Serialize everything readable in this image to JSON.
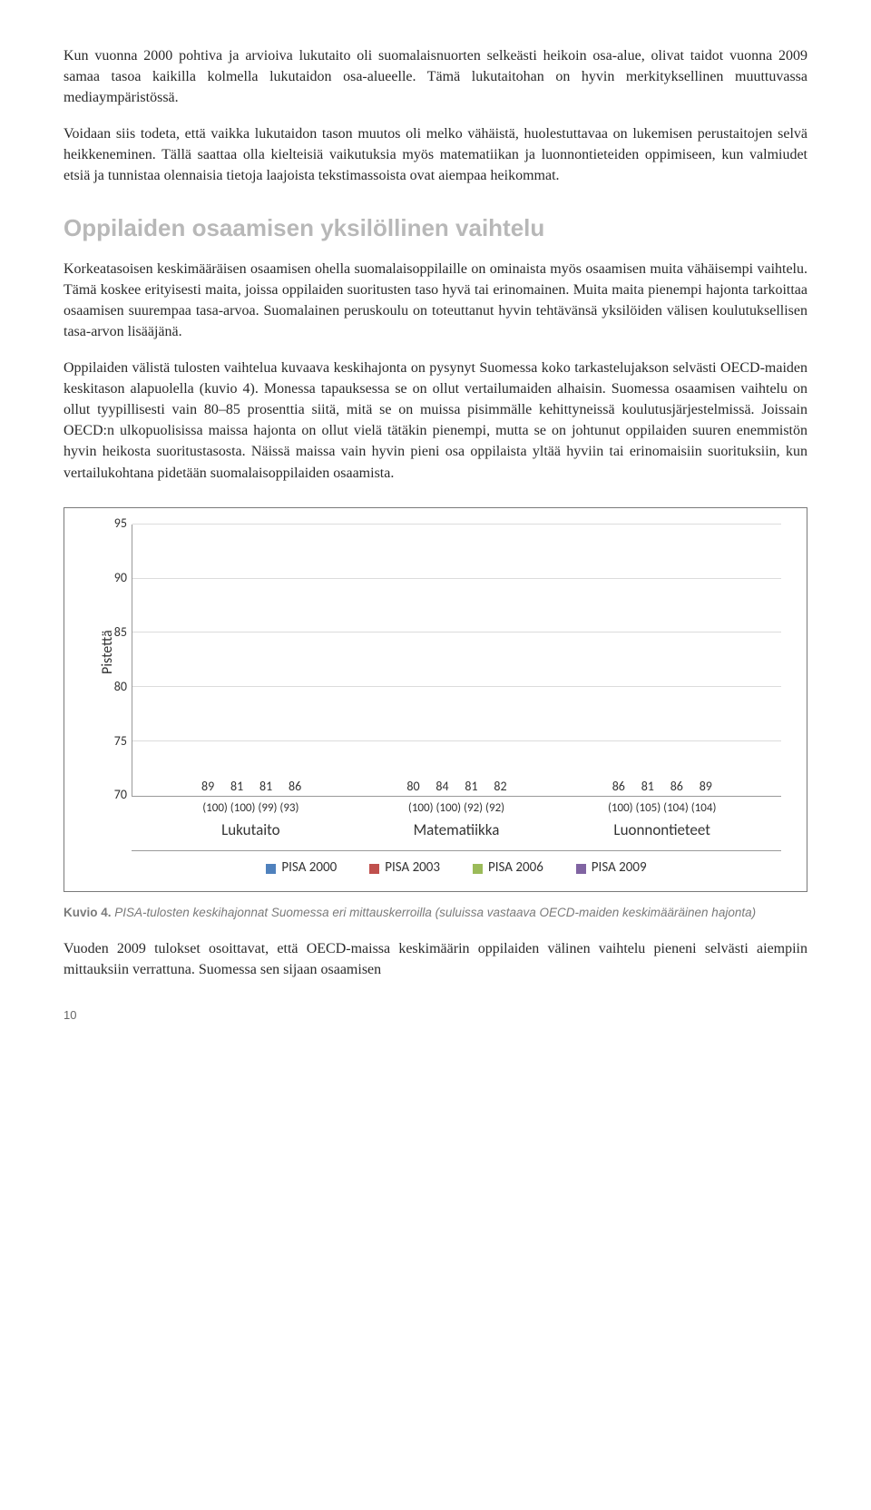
{
  "para1": "Kun vuonna 2000 pohtiva ja arvioiva lukutaito oli suomalaisnuorten selkeästi heikoin osa-alue, olivat taidot vuonna 2009 samaa tasoa kaikilla kolmella lukutaidon osa-alueelle. Tämä lukutaitohan on hyvin merkityksellinen muuttuvassa mediaympäristössä.",
  "para2": "Voidaan siis todeta, että vaikka lukutaidon tason muutos oli melko vähäistä, huolestuttavaa on lukemisen perustaitojen selvä heikkeneminen. Tällä saattaa olla kielteisiä vaikutuksia myös matematiikan ja luonnontieteiden oppimiseen, kun valmiudet etsiä ja tunnistaa olennaisia tietoja laajoista tekstimassoista ovat aiempaa heikommat.",
  "heading": "Oppilaiden osaamisen yksilöllinen vaihtelu",
  "para3": "Korkeatasoisen keskimääräisen osaamisen ohella suomalaisoppilaille on ominaista myös osaamisen muita vähäisempi vaihtelu. Tämä koskee erityisesti maita, joissa oppilaiden suoritusten taso hyvä tai erinomainen. Muita maita pienempi hajonta tarkoittaa osaamisen suurempaa tasa-arvoa. Suomalainen peruskoulu on toteuttanut hyvin tehtävänsä yksilöiden välisen koulutuksellisen tasa-arvon lisääjänä.",
  "para4": "Oppilaiden välistä tulosten vaihtelua kuvaava keskihajonta on pysynyt Suomessa koko tarkastelujakson selvästi OECD-maiden keskitason alapuolella (kuvio 4). Monessa tapauksessa se on ollut vertailumaiden alhaisin. Suomessa osaamisen vaihtelu on ollut tyypillisesti vain 80–85 prosenttia siitä, mitä se on muissa pisimmälle kehittyneissä koulutusjärjestelmissä. Joissain OECD:n ulkopuolisissa maissa hajonta on ollut vielä tätäkin pienempi, mutta se on johtunut oppilaiden suuren enemmistön hyvin heikosta suoritustasosta. Näissä maissa vain hyvin pieni osa oppilaista yltää hyviin tai erinomaisiin suorituksiin, kun vertailukohtana pidetään suomalaisoppilaiden osaamista.",
  "chart": {
    "type": "bar",
    "ylabel": "Pistettä",
    "ylim": [
      70,
      95
    ],
    "ytick_step": 5,
    "yticks": [
      70,
      75,
      80,
      85,
      90,
      95
    ],
    "grid_color": "#dcdcdc",
    "background_color": "#ffffff",
    "categories": [
      "Lukutaito",
      "Matematiikka",
      "Luonnontieteet"
    ],
    "series": [
      {
        "name": "PISA 2000",
        "color": "#4f81bd"
      },
      {
        "name": "PISA 2003",
        "color": "#c0504d"
      },
      {
        "name": "PISA 2006",
        "color": "#9bbb59"
      },
      {
        "name": "PISA 2009",
        "color": "#8064a2"
      }
    ],
    "groups": [
      {
        "category": "Lukutaito",
        "bars": [
          {
            "value": 89,
            "paren": "(100)"
          },
          {
            "value": 81,
            "paren": "(100)"
          },
          {
            "value": 81,
            "paren": "(99)"
          },
          {
            "value": 86,
            "paren": "(93)"
          }
        ]
      },
      {
        "category": "Matematiikka",
        "bars": [
          {
            "value": 80,
            "paren": "(100)"
          },
          {
            "value": 84,
            "paren": "(100)"
          },
          {
            "value": 81,
            "paren": "(92)"
          },
          {
            "value": 82,
            "paren": "(92)"
          }
        ]
      },
      {
        "category": "Luonnontieteet",
        "bars": [
          {
            "value": 86,
            "paren": "(100)"
          },
          {
            "value": 81,
            "paren": "(105)"
          },
          {
            "value": 86,
            "paren": "(104)"
          },
          {
            "value": 89,
            "paren": "(104)"
          }
        ]
      }
    ]
  },
  "caption_bold": "Kuvio 4.",
  "caption_text": " PISA-tulosten keskihajonnat Suomessa eri mittauskerroilla (suluissa vastaava OECD-maiden keskimääräinen hajonta)",
  "para5": "Vuoden 2009 tulokset osoittavat, että OECD-maissa keskimäärin oppilaiden välinen vaihtelu pieneni selvästi aiempiin mittauksiin verrattuna. Suomessa sen sijaan osaamisen",
  "page_number": "10"
}
